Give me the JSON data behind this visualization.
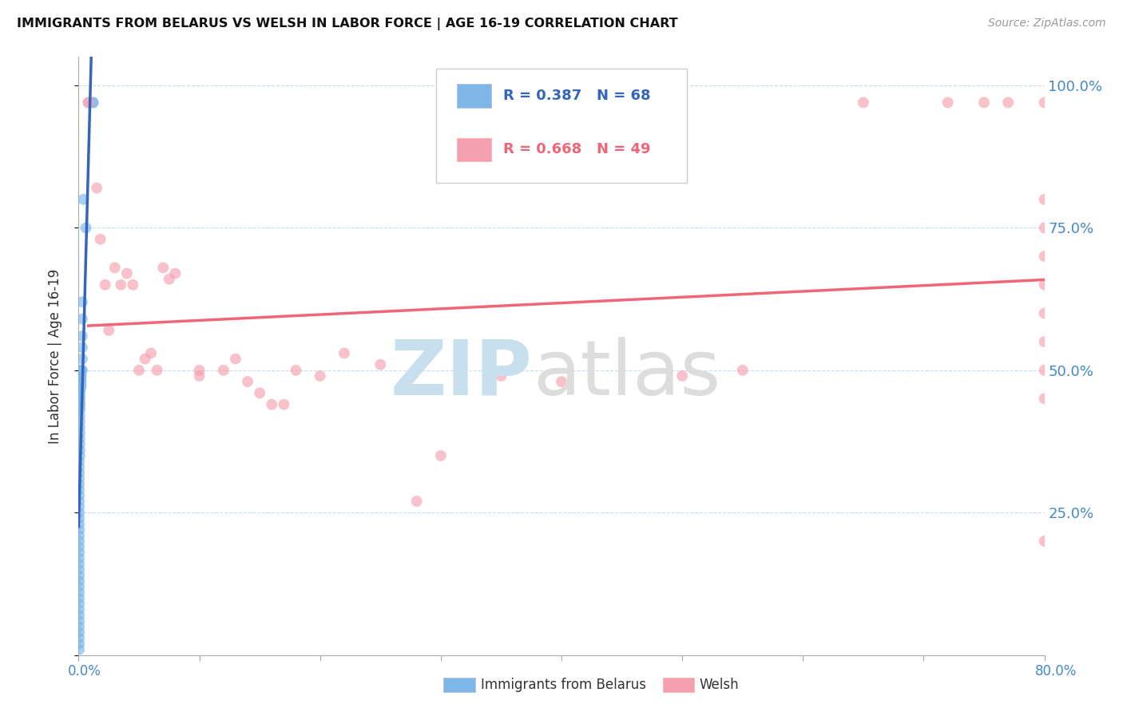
{
  "title": "IMMIGRANTS FROM BELARUS VS WELSH IN LABOR FORCE | AGE 16-19 CORRELATION CHART",
  "source": "Source: ZipAtlas.com",
  "ylabel": "In Labor Force | Age 16-19",
  "ytick_values": [
    0.0,
    0.25,
    0.5,
    0.75,
    1.0
  ],
  "ytick_labels": [
    "",
    "25.0%",
    "50.0%",
    "75.0%",
    "100.0%"
  ],
  "xlim": [
    0.0,
    0.8
  ],
  "ylim": [
    0.0,
    1.05
  ],
  "blue_color": "#7EB6E8",
  "pink_color": "#F5A0B0",
  "blue_line_color": "#3366BB",
  "pink_line_color": "#EE6677",
  "blue_line_solid_xmax": 0.018,
  "blue_line_dash_xmax": 0.8,
  "blue_x": [
    0.012,
    0.012,
    0.004,
    0.006,
    0.003,
    0.003,
    0.003,
    0.003,
    0.003,
    0.003,
    0.002,
    0.002,
    0.002,
    0.002,
    0.002,
    0.002,
    0.002,
    0.002,
    0.001,
    0.001,
    0.001,
    0.001,
    0.001,
    0.001,
    0.001,
    0.001,
    0.001,
    0.001,
    0.001,
    0.001,
    0.001,
    0.001,
    0.001,
    0.001,
    0.0005,
    0.0005,
    0.0005,
    0.0005,
    0.0005,
    0.0005,
    0.0005,
    0.0005,
    0.0005,
    0.0005,
    0.0005,
    0.0005,
    0.0005,
    0.0005,
    0.0005,
    0.0005,
    0.0005,
    0.0005,
    0.0005,
    0.0005,
    0.0005,
    0.0005,
    0.0005,
    0.0005,
    0.0005,
    0.0005,
    0.0005,
    0.0005,
    0.0005,
    0.0005,
    0.0005,
    0.0005,
    0.0005,
    0.0005
  ],
  "blue_y": [
    0.97,
    0.97,
    0.8,
    0.75,
    0.62,
    0.59,
    0.56,
    0.54,
    0.52,
    0.5,
    0.5,
    0.5,
    0.49,
    0.49,
    0.485,
    0.48,
    0.475,
    0.47,
    0.465,
    0.46,
    0.455,
    0.45,
    0.445,
    0.44,
    0.435,
    0.43,
    0.42,
    0.41,
    0.4,
    0.39,
    0.38,
    0.37,
    0.36,
    0.35,
    0.34,
    0.33,
    0.32,
    0.31,
    0.3,
    0.29,
    0.28,
    0.27,
    0.26,
    0.25,
    0.24,
    0.23,
    0.22,
    0.21,
    0.2,
    0.19,
    0.18,
    0.17,
    0.16,
    0.15,
    0.14,
    0.13,
    0.12,
    0.11,
    0.1,
    0.09,
    0.08,
    0.07,
    0.06,
    0.05,
    0.04,
    0.03,
    0.02,
    0.01
  ],
  "pink_x": [
    0.008,
    0.008,
    0.015,
    0.018,
    0.022,
    0.025,
    0.03,
    0.035,
    0.04,
    0.045,
    0.05,
    0.055,
    0.06,
    0.065,
    0.07,
    0.075,
    0.08,
    0.1,
    0.1,
    0.12,
    0.13,
    0.14,
    0.15,
    0.16,
    0.17,
    0.18,
    0.2,
    0.22,
    0.25,
    0.28,
    0.3,
    0.35,
    0.4,
    0.5,
    0.55,
    0.65,
    0.72,
    0.75,
    0.77,
    0.8,
    0.8,
    0.8,
    0.8,
    0.8,
    0.8,
    0.8,
    0.8,
    0.8,
    0.8
  ],
  "pink_y": [
    0.97,
    0.97,
    0.82,
    0.73,
    0.65,
    0.57,
    0.68,
    0.65,
    0.67,
    0.65,
    0.5,
    0.52,
    0.53,
    0.5,
    0.68,
    0.66,
    0.67,
    0.5,
    0.49,
    0.5,
    0.52,
    0.48,
    0.46,
    0.44,
    0.44,
    0.5,
    0.49,
    0.53,
    0.51,
    0.27,
    0.35,
    0.49,
    0.48,
    0.49,
    0.5,
    0.97,
    0.97,
    0.97,
    0.97,
    0.97,
    0.8,
    0.75,
    0.7,
    0.65,
    0.6,
    0.55,
    0.5,
    0.45,
    0.2
  ]
}
